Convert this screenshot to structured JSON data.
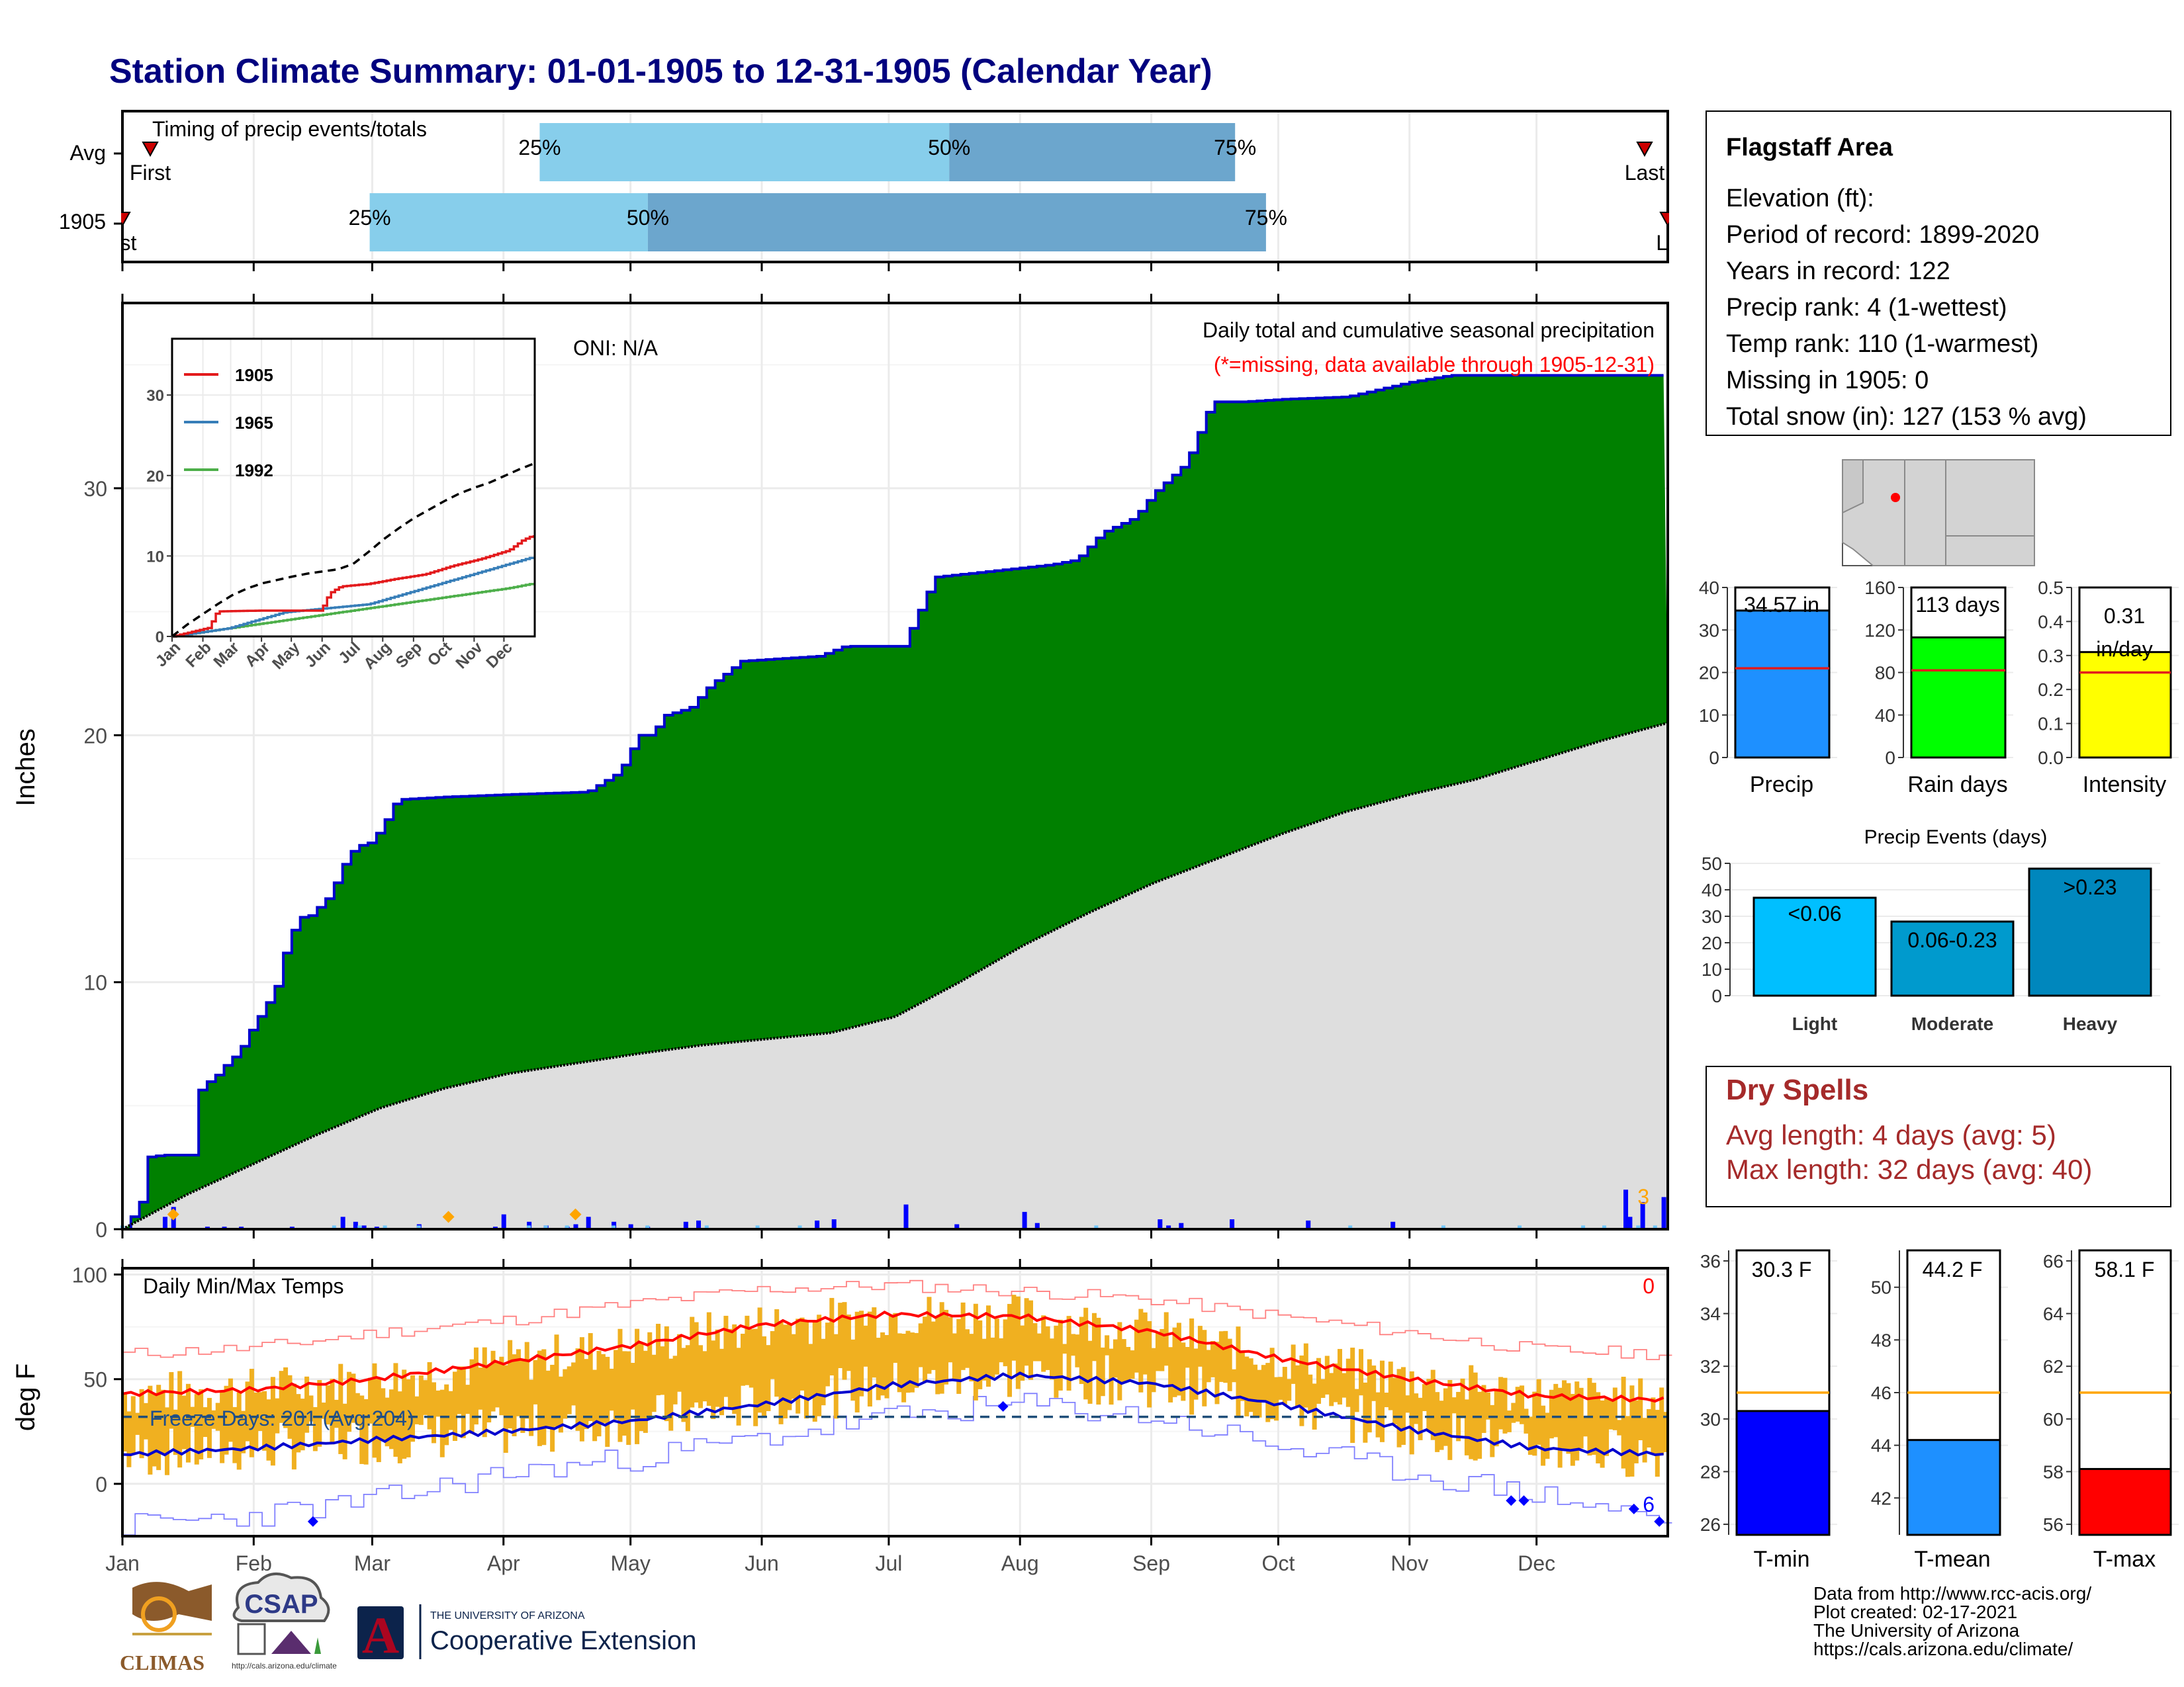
{
  "title": "Station Climate Summary: 01-01-1905 to 12-31-1905 (Calendar Year)",
  "timing": {
    "label": "Timing of precip events/totals",
    "rows": [
      {
        "name": "Avg",
        "p25": 0.27,
        "p50": 0.535,
        "p75": 0.72,
        "first": 0.018,
        "last": 0.985,
        "first_label": "First",
        "last_label": "Last"
      },
      {
        "name": "1905",
        "p25": 0.16,
        "p50": 0.34,
        "p75": 0.74,
        "first": 0.0,
        "last": 1.0,
        "first_label": "irst",
        "last_label": "La"
      }
    ],
    "pct_labels": [
      "25%",
      "50%",
      "75%"
    ]
  },
  "main_chart": {
    "ylabel": "Inches",
    "ticks": [
      "0",
      "10",
      "20",
      "30"
    ],
    "oni": "ONI: N/A",
    "header1": "Daily total and cumulative seasonal precipitation",
    "header2": "(*=missing, data available through 1905-12-31)",
    "corner_count": "3",
    "months": [
      "Jan",
      "Feb",
      "Mar",
      "Apr",
      "May",
      "Jun",
      "Jul",
      "Aug",
      "Sep",
      "Oct",
      "Nov",
      "Dec"
    ]
  },
  "chart_data": [
    {
      "type": "area",
      "name": "cumulative precipitation",
      "xlabel": "",
      "ylabel": "Inches",
      "ylim": [
        0,
        38
      ],
      "series": [
        {
          "name": "1905",
          "points": [
            [
              0,
              0
            ],
            [
              13,
              1
            ],
            [
              16,
              2.9
            ],
            [
              31,
              3
            ],
            [
              53,
              3
            ],
            [
              56,
              5
            ],
            [
              60,
              5.8
            ],
            [
              70,
              6.1
            ],
            [
              80,
              6.7
            ],
            [
              90,
              7.2
            ],
            [
              100,
              8.2
            ],
            [
              110,
              9
            ],
            [
              120,
              10
            ],
            [
              125,
              11.2
            ],
            [
              135,
              12.6
            ],
            [
              145,
              12.7
            ],
            [
              160,
              13.5
            ],
            [
              170,
              14.7
            ],
            [
              180,
              15.5
            ],
            [
              190,
              15.6
            ],
            [
              200,
              16.2
            ],
            [
              210,
              17.2
            ],
            [
              215,
              17.4
            ],
            [
              250,
              17.5
            ],
            [
              300,
              17.6
            ],
            [
              360,
              17.7
            ],
            [
              385,
              18.5
            ],
            [
              400,
              20
            ],
            [
              410,
              20
            ],
            [
              420,
              20.8
            ],
            [
              440,
              21.1
            ],
            [
              455,
              22
            ],
            [
              480,
              23
            ],
            [
              540,
              23.2
            ],
            [
              560,
              23.6
            ],
            [
              605,
              23.6
            ],
            [
              630,
              26.4
            ],
            [
              720,
              26.9
            ],
            [
              740,
              27.1
            ],
            [
              760,
              28.2
            ],
            [
              785,
              28.8
            ],
            [
              800,
              29.8
            ],
            [
              825,
              31
            ],
            [
              845,
              33.5
            ],
            [
              870,
              33.5
            ],
            [
              900,
              33.6
            ],
            [
              950,
              33.7
            ],
            [
              1000,
              34.3
            ],
            [
              1030,
              34.57
            ]
          ]
        },
        {
          "name": "Average",
          "points": [
            [
              0,
              0
            ],
            [
              50,
              1.4
            ],
            [
              100,
              2.6
            ],
            [
              150,
              3.8
            ],
            [
              200,
              4.9
            ],
            [
              250,
              5.7
            ],
            [
              300,
              6.3
            ],
            [
              350,
              6.7
            ],
            [
              400,
              7.1
            ],
            [
              450,
              7.45
            ],
            [
              500,
              7.7
            ],
            [
              550,
              7.95
            ],
            [
              600,
              8.6
            ],
            [
              650,
              10
            ],
            [
              700,
              11.5
            ],
            [
              750,
              12.8
            ],
            [
              800,
              14
            ],
            [
              850,
              15
            ],
            [
              900,
              16
            ],
            [
              950,
              16.9
            ],
            [
              1000,
              17.6
            ],
            [
              1050,
              18.2
            ],
            [
              1100,
              19
            ],
            [
              1150,
              19.8
            ],
            [
              1200,
              20.5
            ]
          ]
        }
      ]
    },
    {
      "type": "bar",
      "name": "daily precipitation",
      "ylabel": "Inches",
      "x_day": [
        10,
        12,
        20,
        24,
        25,
        28,
        40,
        52,
        55,
        57,
        60,
        70,
        88,
        90,
        96,
        100,
        105,
        107,
        110,
        116,
        120,
        124,
        133,
        136,
        164,
        168,
        185,
        197,
        213,
        216,
        245,
        247,
        250,
        262,
        280,
        300,
        355,
        356,
        359,
        364
      ],
      "values": [
        0.5,
        0.9,
        0.1,
        0.1,
        0.05,
        0.1,
        0.1,
        0.5,
        0.3,
        0.15,
        0.1,
        0.2,
        0.1,
        0.6,
        0.3,
        0.15,
        0.1,
        0.2,
        0.5,
        0.3,
        0.2,
        0.1,
        0.3,
        0.35,
        0.35,
        0.4,
        1.0,
        0.2,
        0.7,
        0.25,
        0.4,
        0.15,
        0.25,
        0.4,
        0.35,
        0.3,
        1.6,
        0.5,
        1.1,
        1.3
      ]
    },
    {
      "type": "line",
      "name": "inset cumulative precipitation",
      "xlabel": "",
      "ylabel": "",
      "ylim": [
        0,
        37
      ],
      "series": [
        {
          "name": "1905",
          "color": "#e31a1c"
        },
        {
          "name": "1965",
          "color": "#377eb8"
        },
        {
          "name": "1992",
          "color": "#4daf4a"
        },
        {
          "name": "",
          "style": "dashed",
          "color": "#000000"
        }
      ],
      "months": [
        "Jan",
        "Feb",
        "Mar",
        "Apr",
        "May",
        "Jun",
        "Jul",
        "Aug",
        "Sep",
        "Oct",
        "Nov",
        "Dec"
      ],
      "ticks": [
        0,
        10,
        20,
        30
      ]
    },
    {
      "type": "bar",
      "name": "Precip",
      "categories": [
        "Precip"
      ],
      "values": [
        34.57
      ],
      "avg": 21,
      "ylim": [
        0,
        40
      ],
      "ticks": [
        0,
        10,
        20,
        30,
        40
      ],
      "label": "34.57 in",
      "color": "#1e90ff"
    },
    {
      "type": "bar",
      "name": "Rain days",
      "categories": [
        "Rain days"
      ],
      "values": [
        113
      ],
      "avg": 82,
      "ylim": [
        0,
        160
      ],
      "ticks": [
        0,
        40,
        80,
        120,
        160
      ],
      "label": "113 days",
      "color": "#00ff00"
    },
    {
      "type": "bar",
      "name": "Intensity",
      "categories": [
        "Intensity"
      ],
      "values": [
        0.31
      ],
      "avg": 0.25,
      "ylim": [
        0,
        0.5
      ],
      "ticks": [
        0.0,
        0.1,
        0.2,
        0.3,
        0.4,
        0.5
      ],
      "label": "0.31 in/day",
      "color": "#ffff00"
    },
    {
      "type": "bar",
      "name": "Precip Events (days)",
      "title": "Precip Events (days)",
      "categories": [
        "Light",
        "Moderate",
        "Heavy"
      ],
      "values": [
        37,
        28,
        48
      ],
      "bar_labels": [
        "<0.06",
        "0.06-0.23",
        ">0.23"
      ],
      "colors": [
        "#00bfff",
        "#009acd",
        "#0087bd"
      ],
      "ylim": [
        0,
        50
      ],
      "ticks": [
        0,
        10,
        20,
        30,
        40,
        50
      ]
    },
    {
      "type": "bar",
      "name": "Daily Min/Max Temps",
      "title": "Daily Min/Max Temps",
      "ylabel": "deg F",
      "ylim": [
        -25,
        103
      ],
      "ticks": [
        0,
        50,
        100
      ],
      "freeze_line": 32,
      "avg_max": [
        [
          0,
          43
        ],
        [
          31,
          45
        ],
        [
          59,
          50
        ],
        [
          90,
          58
        ],
        [
          120,
          66
        ],
        [
          151,
          76
        ],
        [
          181,
          81
        ],
        [
          212,
          80
        ],
        [
          243,
          73
        ],
        [
          273,
          60
        ],
        [
          304,
          50
        ],
        [
          334,
          42
        ],
        [
          365,
          40
        ]
      ],
      "avg_min": [
        [
          0,
          14
        ],
        [
          31,
          17
        ],
        [
          59,
          21
        ],
        [
          90,
          25
        ],
        [
          120,
          30
        ],
        [
          151,
          38
        ],
        [
          181,
          47
        ],
        [
          212,
          52
        ],
        [
          243,
          48
        ],
        [
          273,
          38
        ],
        [
          304,
          26
        ],
        [
          334,
          17
        ],
        [
          365,
          14
        ]
      ],
      "record_max": [
        [
          0,
          62
        ],
        [
          31,
          65
        ],
        [
          59,
          72
        ],
        [
          90,
          78
        ],
        [
          120,
          86
        ],
        [
          151,
          93
        ],
        [
          181,
          95
        ],
        [
          212,
          92
        ],
        [
          243,
          88
        ],
        [
          273,
          80
        ],
        [
          304,
          72
        ],
        [
          334,
          64
        ],
        [
          365,
          62
        ]
      ],
      "record_min": [
        [
          0,
          -20
        ],
        [
          31,
          -15
        ],
        [
          59,
          -8
        ],
        [
          90,
          5
        ],
        [
          120,
          12
        ],
        [
          151,
          22
        ],
        [
          181,
          32
        ],
        [
          212,
          38
        ],
        [
          243,
          32
        ],
        [
          273,
          18
        ],
        [
          304,
          5
        ],
        [
          334,
          -5
        ],
        [
          365,
          -18
        ]
      ]
    },
    {
      "type": "bar",
      "name": "T-min",
      "categories": [
        "T-min"
      ],
      "values": [
        30.3
      ],
      "avg": 31,
      "ylim": [
        25.6,
        36.4
      ],
      "ticks": [
        26,
        28,
        30,
        32,
        34,
        36
      ],
      "label": "30.3 F",
      "color": "#0000ff"
    },
    {
      "type": "bar",
      "name": "T-mean",
      "categories": [
        "T-mean"
      ],
      "values": [
        44.2
      ],
      "avg": 46,
      "ylim": [
        40.6,
        51.4
      ],
      "ticks": [
        42,
        44,
        46,
        48,
        50
      ],
      "label": "44.2 F",
      "color": "#1e90ff"
    },
    {
      "type": "bar",
      "name": "T-max",
      "categories": [
        "T-max"
      ],
      "values": [
        58.1
      ],
      "avg": 61,
      "ylim": [
        55.6,
        66.4
      ],
      "ticks": [
        56,
        58,
        60,
        62,
        64,
        66
      ],
      "label": "58.1 F",
      "color": "#ff0000"
    }
  ],
  "temp_chart": {
    "title": "Daily Min/Max Temps",
    "ylabel": "deg F",
    "ticks": [
      "0",
      "50",
      "100"
    ],
    "freeze_text": "Freeze Days: 201 (Avg:204)",
    "corner_top": "0",
    "corner_bottom": "6",
    "months": [
      "Jan",
      "Feb",
      "Mar",
      "Apr",
      "May",
      "Jun",
      "Jul",
      "Aug",
      "Sep",
      "Oct",
      "Nov",
      "Dec"
    ]
  },
  "inset": {
    "legend": [
      "1905",
      "1965",
      "1992"
    ],
    "ticks": [
      "0",
      "10",
      "20",
      "30"
    ],
    "months": [
      "Jan",
      "Feb",
      "Mar",
      "Apr",
      "May",
      "Jun",
      "Jul",
      "Aug",
      "Sep",
      "Oct",
      "Nov",
      "Dec"
    ]
  },
  "station": {
    "name": "Flagstaff Area",
    "lines": [
      "Elevation (ft):",
      "Period of record: 1899-2020",
      "Years in record: 122",
      "Precip rank: 4 (1-wettest)",
      "Temp rank: 110 (1-warmest)",
      "Missing in 1905: 0",
      "Total snow (in): 127 (153 % avg)"
    ]
  },
  "small_bars": {
    "precip_label": "34.57 in",
    "precip_x": "Precip",
    "rain_label": "113 days",
    "rain_x": "Rain days",
    "int_label1": "0.31",
    "int_label2": "in/day",
    "int_x": "Intensity",
    "tmin_label": "30.3 F",
    "tmin_x": "T-min",
    "tmean_label": "44.2 F",
    "tmean_x": "T-mean",
    "tmax_label": "58.1 F",
    "tmax_x": "T-max"
  },
  "events": {
    "title": "Precip Events (days)",
    "categories": [
      "Light",
      "Moderate",
      "Heavy"
    ],
    "labels": [
      "<0.06",
      "0.06-0.23",
      ">0.23"
    ]
  },
  "dry_spells": {
    "title": "Dry Spells",
    "line1": "Avg length: 4 days (avg: 5)",
    "line2": "Max length: 32 days (avg: 40)"
  },
  "credits": [
    "Data from http://www.rcc-acis.org/",
    "Plot created: 02-17-2021",
    "The University of Arizona",
    "https://cals.arizona.edu/climate/"
  ],
  "logos": {
    "climas": "CLIMAS",
    "csap": "CSAP",
    "csap_url": "http://cals.arizona.edu/climate",
    "ua_small": "THE UNIVERSITY OF ARIZONA",
    "ua_big": "Cooperative Extension",
    "ua_letter": "A"
  },
  "colors": {
    "title": "#00007f",
    "green": "#008000",
    "blue_line": "#0000cd",
    "avg_fill": "#dedede",
    "bar_blue": "#0000ff",
    "temp_bar": "#f0b020",
    "dry": "#a52a2a"
  }
}
